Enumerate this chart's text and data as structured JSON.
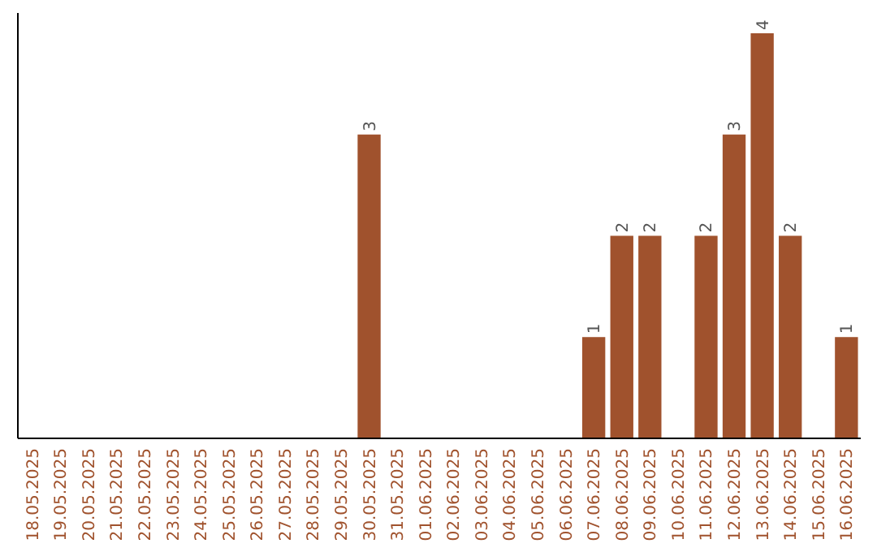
{
  "chart_data": {
    "type": "bar",
    "categories": [
      "18.05.2025",
      "19.05.2025",
      "20.05.2025",
      "21.05.2025",
      "22.05.2025",
      "23.05.2025",
      "24.05.2025",
      "25.05.2025",
      "26.05.2025",
      "27.05.2025",
      "28.05.2025",
      "29.05.2025",
      "30.05.2025",
      "31.05.2025",
      "01.06.2025",
      "02.06.2025",
      "03.06.2025",
      "04.06.2025",
      "05.06.2025",
      "06.06.2025",
      "07.06.2025",
      "08.06.2025",
      "09.06.2025",
      "10.06.2025",
      "11.06.2025",
      "12.06.2025",
      "13.06.2025",
      "14.06.2025",
      "15.06.2025",
      "16.06.2025"
    ],
    "values": [
      null,
      null,
      null,
      null,
      null,
      null,
      null,
      null,
      null,
      null,
      null,
      null,
      3,
      null,
      null,
      null,
      null,
      null,
      null,
      null,
      1,
      2,
      2,
      null,
      2,
      3,
      4,
      2,
      null,
      1
    ],
    "value_labels": [
      null,
      null,
      null,
      null,
      null,
      null,
      null,
      null,
      null,
      null,
      null,
      null,
      "3",
      null,
      null,
      null,
      null,
      null,
      null,
      null,
      "1",
      "2",
      "2",
      null,
      "2",
      "3",
      "4",
      "2",
      null,
      "1"
    ],
    "color": "#a0522d",
    "ylim": [
      0,
      4.2
    ],
    "tick_labels": "x"
  }
}
